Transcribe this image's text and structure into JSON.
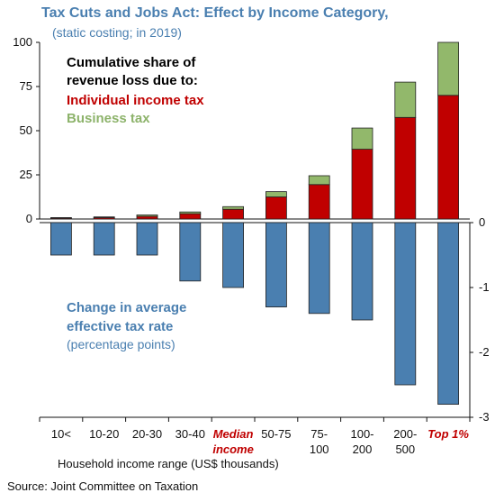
{
  "title": "Tax Cuts and Jobs Act: Effect by Income Category,",
  "subtitle": "(static costing; in 2019)",
  "source": "Source: Joint Committee on Taxation",
  "colors": {
    "individual": "#c00000",
    "business": "#92b86b",
    "rate": "#4a7fb0",
    "title": "#4a7fb0"
  },
  "chart_data": [
    {
      "type": "bar",
      "stacked": true,
      "panel": "top",
      "categories": [
        "10<",
        "10-20",
        "20-30",
        "30-40",
        "Median income",
        "50-75",
        "75-100",
        "100-200",
        "200-500",
        "Top 1%"
      ],
      "series": [
        {
          "name": "Individual income tax",
          "values": [
            0.5,
            0.8,
            1.5,
            3.0,
            5.5,
            12.5,
            19.5,
            39.5,
            57.5,
            70.0
          ]
        },
        {
          "name": "Business tax",
          "values": [
            0.3,
            0.4,
            0.8,
            1.0,
            1.5,
            3.0,
            5.0,
            12.0,
            20.0,
            30.0
          ]
        }
      ],
      "annotation": [
        "Cumulative share of",
        "revenue loss due to:"
      ],
      "yticks": [
        "0",
        "25",
        "50",
        "75",
        "100"
      ],
      "ylim": [
        0,
        100
      ],
      "axis_side": "left"
    },
    {
      "type": "bar",
      "panel": "bottom",
      "categories": [
        "10<",
        "10-20",
        "20-30",
        "30-40",
        "Median income",
        "50-75",
        "75-100",
        "100-200",
        "200-500",
        "Top 1%"
      ],
      "values": [
        -0.5,
        -0.5,
        -0.5,
        -0.9,
        -1.0,
        -1.3,
        -1.4,
        -1.5,
        -2.5,
        -2.8
      ],
      "annotation": [
        "Change in average",
        "effective tax rate",
        "(percentage points)"
      ],
      "yticks": [
        "0",
        "-1",
        "-2",
        "-3"
      ],
      "ylim": [
        -3,
        0
      ],
      "axis_side": "right"
    }
  ],
  "x_axis": {
    "labels": [
      [
        "10<"
      ],
      [
        "10-20"
      ],
      [
        "20-30"
      ],
      [
        "30-40"
      ],
      [
        "Median",
        "income"
      ],
      [
        "50-75"
      ],
      [
        "75-",
        "100"
      ],
      [
        "100-",
        "200"
      ],
      [
        "200-",
        "500"
      ],
      [
        "Top 1%"
      ]
    ],
    "highlight": [
      4,
      9
    ],
    "title": "Household income range (US$ thousands)"
  }
}
